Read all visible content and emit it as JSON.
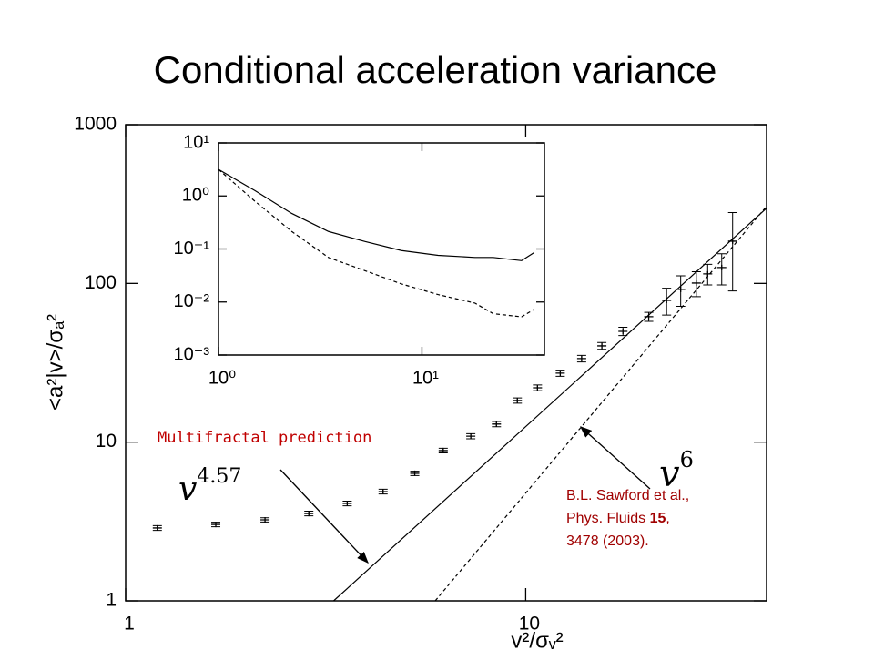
{
  "chart_data": [
    {
      "type": "scatter",
      "title": "Conditional acceleration variance",
      "xlabel": "v²/σᵥ²",
      "ylabel": "<a²|v>/σₐ²",
      "log_x": true,
      "log_y": true,
      "xlim": [
        1,
        40
      ],
      "ylim": [
        1,
        1000
      ],
      "xticks": [
        1,
        10
      ],
      "yticks": [
        1,
        10,
        100,
        1000
      ],
      "series": [
        {
          "style": "cross",
          "color": "#000000",
          "x": [
            1.2,
            1.68,
            2.23,
            2.87,
            3.58,
            4.4,
            5.28,
            6.22,
            7.29,
            8.45,
            9.53,
            10.7,
            12.2,
            13.8,
            15.5,
            17.5,
            20.3,
            22.5,
            24.4,
            26.7,
            28.5,
            30.9,
            32.9
          ],
          "values": [
            2.88,
            3.03,
            3.24,
            3.55,
            4.11,
            4.88,
            6.36,
            8.85,
            10.9,
            13.0,
            18.3,
            22.0,
            27.2,
            33.6,
            40.4,
            49.9,
            61.7,
            78.2,
            91.7,
            100.5,
            114.8,
            125.9,
            184.6
          ],
          "errors": [
            0.1,
            0.1,
            0.1,
            0.12,
            0.14,
            0.17,
            0.2,
            0.3,
            0.4,
            0.5,
            0.7,
            0.9,
            1.2,
            1.6,
            2,
            3,
            4,
            15,
            20,
            18,
            17,
            28,
            95
          ]
        },
        {
          "style": "solid",
          "color": "#000000",
          "x": [
            3.31,
            40
          ],
          "values": [
            1,
            298
          ]
        },
        {
          "style": "dashed",
          "color": "#000000",
          "x": [
            5.94,
            40
          ],
          "values": [
            1,
            306
          ]
        }
      ],
      "annotations": {
        "prediction": "Multifractal prediction",
        "fit_base": "v",
        "fit_exponent": "4.57",
        "v6_base": "v",
        "v6_exponent": "6",
        "citation_line1": "B.L. Sawford et al.,",
        "citation_line2": "Phys. Fluids ",
        "citation_bold": "15",
        "citation_comma": ",",
        "citation_line3": "3478 (2003)."
      }
    },
    {
      "type": "line",
      "log_x": true,
      "log_y": true,
      "xlim": [
        1,
        40
      ],
      "ylim": [
        0.001,
        10
      ],
      "xticks": [
        {
          "value": 1,
          "label": "10⁰"
        },
        {
          "value": 10,
          "label": "10¹"
        }
      ],
      "yticks": [
        {
          "value": 0.001,
          "label": "10⁻³"
        },
        {
          "value": 0.01,
          "label": "10⁻²"
        },
        {
          "value": 0.1,
          "label": "10⁻¹"
        },
        {
          "value": 1,
          "label": "10⁰"
        },
        {
          "value": 10,
          "label": "10¹"
        }
      ],
      "series": [
        {
          "style": "solid",
          "color": "#000000",
          "x": [
            1,
            1.51,
            2.29,
            3.47,
            5.25,
            7.94,
            12.0,
            18.2,
            22.4,
            30.9,
            35.5
          ],
          "values": [
            3.16,
            1.26,
            0.468,
            0.214,
            0.138,
            0.0933,
            0.0759,
            0.0692,
            0.0692,
            0.0603,
            0.0851
          ]
        },
        {
          "style": "dashed",
          "color": "#000000",
          "x": [
            1,
            1.51,
            2.29,
            3.47,
            5.25,
            7.94,
            12.0,
            18.2,
            22.4,
            30.9,
            35.5
          ],
          "values": [
            3.16,
            0.794,
            0.214,
            0.0692,
            0.0389,
            0.0219,
            0.0138,
            0.00955,
            0.00603,
            0.00525,
            0.00724
          ]
        }
      ]
    }
  ]
}
